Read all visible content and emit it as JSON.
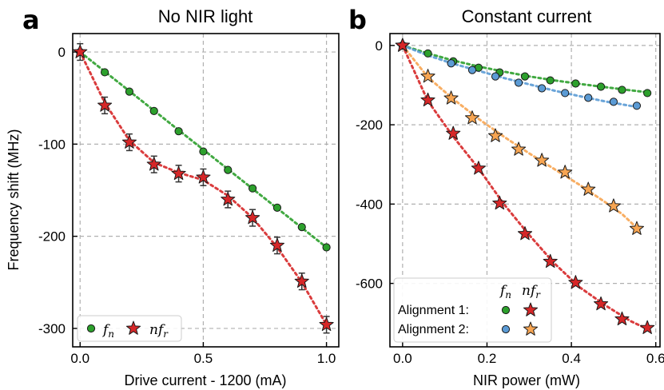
{
  "chart_data": [
    {
      "id": "a",
      "type": "scatter",
      "panel_letter": "a",
      "title": "No NIR light",
      "xlabel": "Drive current - 1200 (mA)",
      "ylabel": "Frequency shift (MHz)",
      "xlim": [
        -0.03,
        1.05
      ],
      "ylim": [
        -320,
        20
      ],
      "xticks": [
        0,
        0.5,
        1
      ],
      "xtick_labels": [
        "0.0",
        "0.5",
        "1.0"
      ],
      "yticks": [
        0,
        -100,
        -200,
        -300
      ],
      "ytick_labels": [
        "0",
        "-100",
        "-200",
        "-300"
      ],
      "grid": true,
      "legend_position": "bottom-left",
      "legend": [
        {
          "label_main": "f",
          "label_sub": "n",
          "marker": "circle",
          "color": "#2ca02c"
        },
        {
          "label_pre": "n",
          "label_main": "f",
          "label_sub": "r",
          "marker": "star",
          "color": "#d62728"
        }
      ],
      "series": [
        {
          "name": "fn",
          "marker": "circle",
          "color": "#2ca02c",
          "fit_color": "#2ca02c",
          "x": [
            0,
            0.1,
            0.2,
            0.3,
            0.4,
            0.5,
            0.6,
            0.7,
            0.8,
            0.9,
            1.0
          ],
          "y": [
            0,
            -22,
            -43,
            -64,
            -86,
            -108,
            -128,
            -148,
            -169,
            -190,
            -212
          ],
          "fit": [
            [
              0,
              0
            ],
            [
              1.0,
              -212
            ]
          ]
        },
        {
          "name": "nfr",
          "marker": "star",
          "color": "#d62728",
          "fit_color": "#d62728",
          "x": [
            0,
            0.1,
            0.2,
            0.3,
            0.4,
            0.5,
            0.6,
            0.7,
            0.8,
            0.9,
            1.0
          ],
          "y": [
            0,
            -58,
            -98,
            -122,
            -132,
            -136,
            -160,
            -180,
            -210,
            -249,
            -296
          ],
          "yerr": [
            9,
            9,
            9,
            9,
            9,
            9,
            9,
            9,
            9,
            9,
            9
          ],
          "fit": [
            [
              0,
              0
            ],
            [
              0.1,
              -55
            ],
            [
              0.2,
              -96
            ],
            [
              0.3,
              -120
            ],
            [
              0.4,
              -131
            ],
            [
              0.5,
              -139
            ],
            [
              0.6,
              -156
            ],
            [
              0.7,
              -180
            ],
            [
              0.8,
              -212
            ],
            [
              0.9,
              -250
            ],
            [
              1.0,
              -296
            ]
          ]
        }
      ]
    },
    {
      "id": "b",
      "type": "scatter",
      "panel_letter": "b",
      "title": "Constant current",
      "xlabel": "NIR power (mW)",
      "ylabel": "",
      "xlim": [
        -0.03,
        0.61
      ],
      "ylim": [
        -760,
        30
      ],
      "xticks": [
        0,
        0.2,
        0.4,
        0.6
      ],
      "xtick_labels": [
        "0.0",
        "0.2",
        "0.4",
        "0.6"
      ],
      "yticks": [
        0,
        -200,
        -400,
        -600
      ],
      "ytick_labels": [
        "0",
        "-200",
        "-400",
        "-600"
      ],
      "grid": true,
      "legend_position": "bottom-left",
      "legend_header": {
        "col1_main": "f",
        "col1_sub": "n",
        "col2_pre": "n",
        "col2_main": "f",
        "col2_sub": "r"
      },
      "legend_rows": [
        {
          "label": "Alignment 1:",
          "circle_color": "#2ca02c",
          "star_color": "#d62728"
        },
        {
          "label": "Alignment 2:",
          "circle_color": "#5b9bd5",
          "star_color": "#f7a552"
        }
      ],
      "series": [
        {
          "name": "Alignment 1 fn",
          "marker": "circle",
          "color": "#2ca02c",
          "fit_color": "#2ca02c",
          "x": [
            0,
            0.06,
            0.12,
            0.18,
            0.23,
            0.29,
            0.35,
            0.41,
            0.47,
            0.52,
            0.58
          ],
          "y": [
            0,
            -20,
            -40,
            -56,
            -68,
            -78,
            -88,
            -96,
            -104,
            -112,
            -120
          ],
          "fit": [
            [
              0,
              0
            ],
            [
              0.06,
              -20
            ],
            [
              0.12,
              -38
            ],
            [
              0.18,
              -53
            ],
            [
              0.24,
              -66
            ],
            [
              0.3,
              -78
            ],
            [
              0.36,
              -88
            ],
            [
              0.42,
              -97
            ],
            [
              0.48,
              -105
            ],
            [
              0.54,
              -113
            ],
            [
              0.58,
              -118
            ]
          ]
        },
        {
          "name": "Alignment 2 fn",
          "marker": "circle",
          "color": "#5b9bd5",
          "fit_color": "#5b9bd5",
          "x": [
            0,
            0.115,
            0.165,
            0.22,
            0.275,
            0.33,
            0.385,
            0.44,
            0.5,
            0.555
          ],
          "y": [
            0,
            -45,
            -62,
            -78,
            -94,
            -108,
            -120,
            -132,
            -142,
            -152
          ],
          "fit": [
            [
              0,
              0
            ],
            [
              0.06,
              -25
            ],
            [
              0.12,
              -46
            ],
            [
              0.18,
              -64
            ],
            [
              0.24,
              -82
            ],
            [
              0.3,
              -98
            ],
            [
              0.36,
              -114
            ],
            [
              0.42,
              -128
            ],
            [
              0.48,
              -141
            ],
            [
              0.56,
              -156
            ]
          ]
        },
        {
          "name": "Alignment 2 nfr",
          "marker": "star",
          "color": "#f7a552",
          "fit_color": "#f7a552",
          "x": [
            0,
            0.06,
            0.115,
            0.165,
            0.22,
            0.275,
            0.33,
            0.385,
            0.44,
            0.5,
            0.555
          ],
          "y": [
            0,
            -78,
            -133,
            -183,
            -228,
            -262,
            -290,
            -320,
            -363,
            -405,
            -462
          ],
          "fit": [
            [
              0,
              0
            ],
            [
              0.06,
              -80
            ],
            [
              0.12,
              -135
            ],
            [
              0.18,
              -185
            ],
            [
              0.24,
              -230
            ],
            [
              0.3,
              -272
            ],
            [
              0.36,
              -312
            ],
            [
              0.42,
              -352
            ],
            [
              0.48,
              -395
            ],
            [
              0.52,
              -425
            ],
            [
              0.56,
              -465
            ]
          ]
        },
        {
          "name": "Alignment 1 nfr",
          "marker": "star",
          "color": "#d62728",
          "fit_color": "#d62728",
          "x": [
            0,
            0.06,
            0.12,
            0.18,
            0.23,
            0.29,
            0.35,
            0.41,
            0.47,
            0.52,
            0.58
          ],
          "y": [
            0,
            -138,
            -222,
            -310,
            -398,
            -475,
            -545,
            -598,
            -652,
            -690,
            -712
          ],
          "fit": [
            [
              0,
              0
            ],
            [
              0.06,
              -140
            ],
            [
              0.12,
              -230
            ],
            [
              0.18,
              -310
            ],
            [
              0.24,
              -400
            ],
            [
              0.3,
              -478
            ],
            [
              0.36,
              -550
            ],
            [
              0.42,
              -610
            ],
            [
              0.48,
              -655
            ],
            [
              0.54,
              -695
            ],
            [
              0.58,
              -715
            ]
          ]
        }
      ]
    }
  ]
}
